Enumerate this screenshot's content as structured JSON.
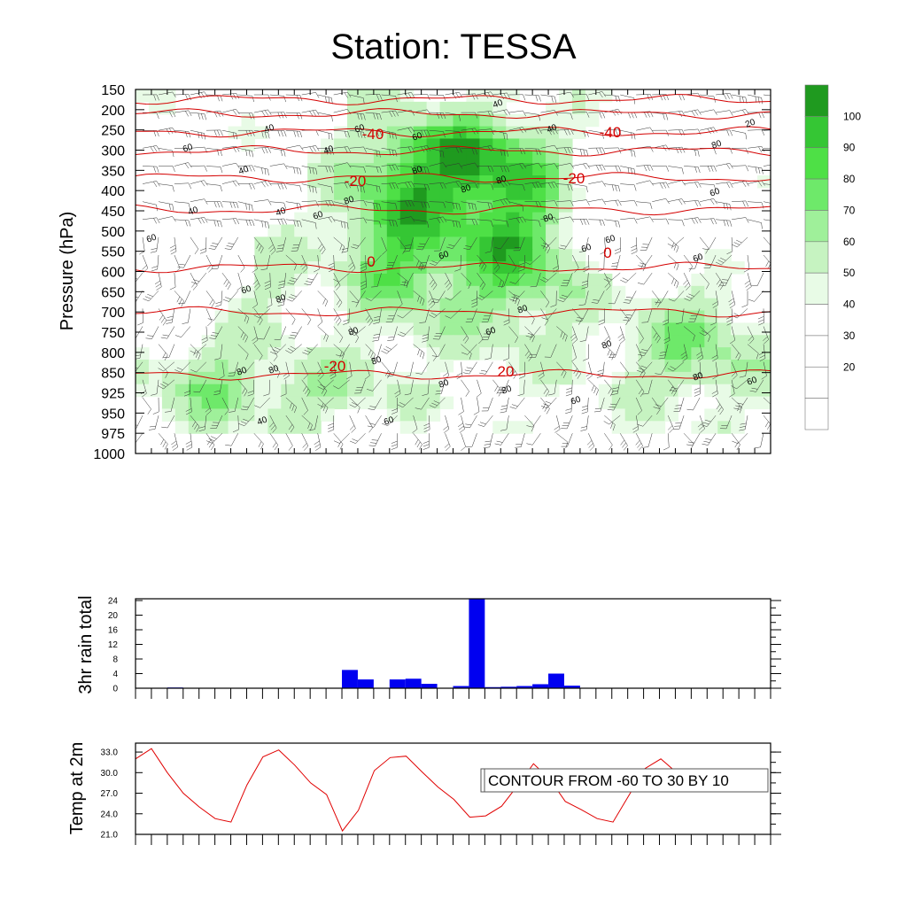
{
  "page": {
    "title": "Station: TESSA"
  },
  "chart_data": [
    {
      "type": "heatmap",
      "title": "Station: TESSA",
      "ylabel": "Pressure (hPa)",
      "y_ticks": [
        150,
        200,
        250,
        300,
        350,
        400,
        450,
        500,
        550,
        600,
        650,
        700,
        750,
        800,
        850,
        925,
        950,
        975,
        1000
      ],
      "humidity_colorbar": {
        "levels": [
          20,
          30,
          40,
          50,
          60,
          70,
          80,
          90,
          100
        ],
        "colors": [
          "#ffffff",
          "#ffffff",
          "#ffffff",
          "#ffffff",
          "#e8fbe6",
          "#c6f3c1",
          "#9ff09a",
          "#6ee96a",
          "#4ee046",
          "#35c634",
          "#1f9a1f"
        ]
      },
      "humidity_field_labels": [
        "60",
        "40",
        "60",
        "40",
        "60",
        "40",
        "40",
        "40",
        "60",
        "60",
        "80",
        "80",
        "80",
        "80",
        "80",
        "60",
        "60",
        "40",
        "20",
        "80",
        "60",
        "60",
        "60",
        "60",
        "80",
        "80",
        "80",
        "60",
        "80",
        "80",
        "80",
        "80",
        "80",
        "80",
        "60",
        "80"
      ],
      "temperature_contour_labels": [
        "-40",
        "-40",
        "-20",
        "-20",
        "0",
        "0",
        "-20",
        "20"
      ],
      "temperature_line_color": "#d40000"
    },
    {
      "type": "bar",
      "ylabel": "3hr rain total",
      "ylim": [
        0,
        24
      ],
      "y_ticks": [
        0,
        4,
        8,
        12,
        16,
        20,
        24
      ],
      "values": [
        0,
        0,
        0.2,
        0,
        0,
        0,
        0,
        0,
        0,
        0,
        0,
        0,
        0,
        5,
        2.4,
        0,
        2.4,
        2.6,
        1.2,
        0,
        0.6,
        25,
        0.3,
        0.4,
        0.6,
        1.1,
        4,
        0.7,
        0,
        0,
        0,
        0,
        0,
        0,
        0,
        0,
        0,
        0,
        0,
        0
      ],
      "bar_color": "#0000f0"
    },
    {
      "type": "line",
      "ylabel": "Temp at 2m",
      "ylim": [
        21,
        34.3
      ],
      "y_tick_labels": [
        "21.0",
        "24.0",
        "27.0",
        "30.0",
        "33.0"
      ],
      "values": [
        32,
        33.5,
        30,
        27,
        25,
        23.3,
        22.8,
        28.2,
        32.3,
        33.3,
        31.1,
        28.5,
        26.8,
        21.5,
        24.5,
        30.3,
        32.2,
        32.4,
        30.1,
        27.9,
        26.1,
        23.5,
        23.7,
        25.1,
        28.1,
        31.3,
        29.1,
        25.8,
        24.6,
        23.3,
        22.8,
        26.7,
        30.6,
        32.0,
        30.0,
        27.7
      ],
      "line_color": "#e00000",
      "annotation": "CONTOUR FROM -60 TO 30 BY 10"
    }
  ]
}
